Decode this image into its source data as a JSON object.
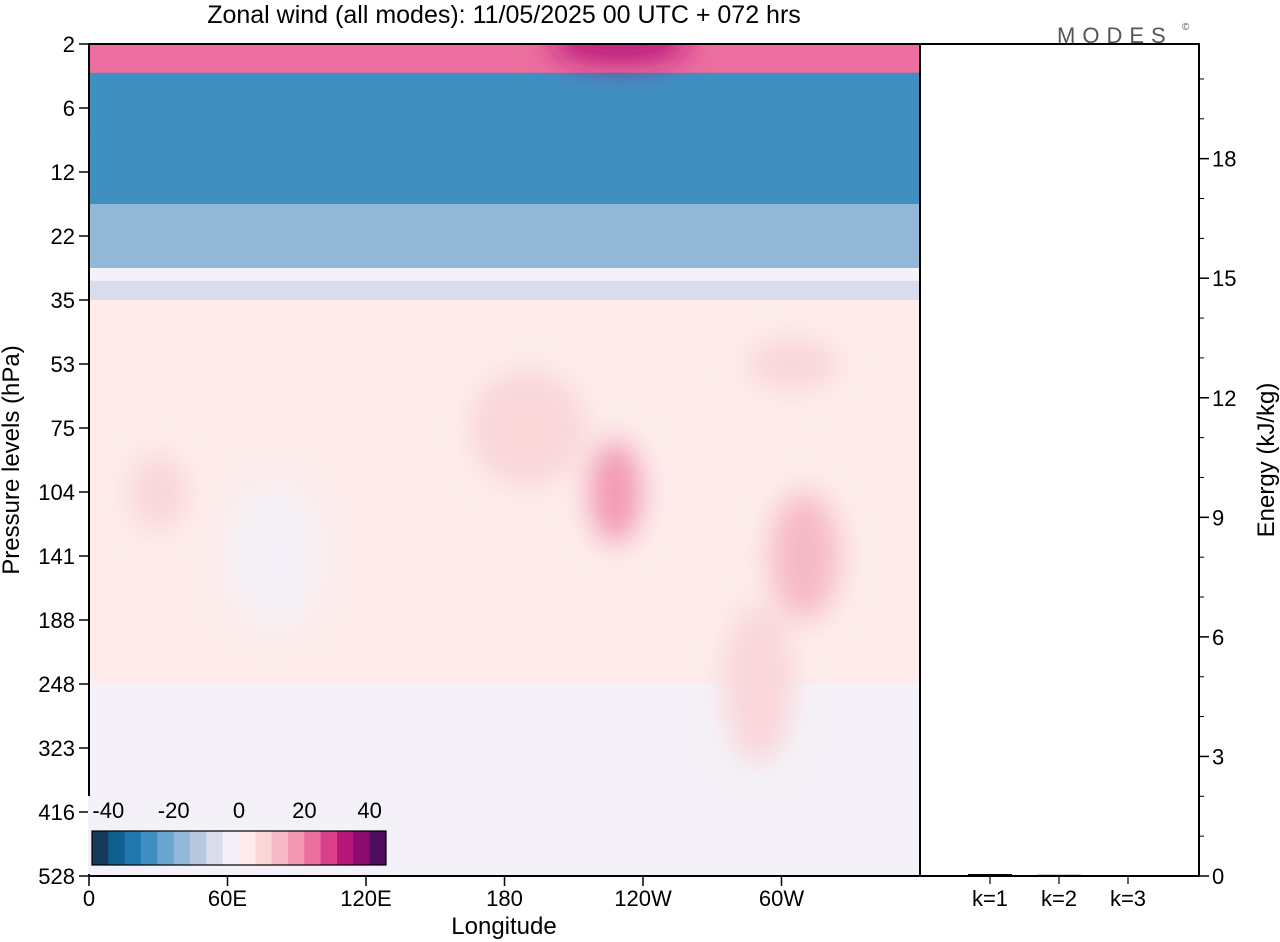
{
  "title": "Zonal wind (all modes):  11/05/2025  00 UTC  + 072 hrs",
  "logo": {
    "text": "MODES",
    "mark": "©"
  },
  "chart_data": [
    {
      "type": "heatmap",
      "title": "Zonal wind (all modes):  11/05/2025  00 UTC  + 072 hrs",
      "xlabel": "Longitude",
      "ylabel": "Pressure levels (hPa)",
      "x_ticks": [
        "0",
        "60E",
        "120E",
        "180",
        "120W",
        "60W"
      ],
      "x_tick_deg": [
        0,
        60,
        120,
        180,
        240,
        300
      ],
      "x_range_deg": [
        0,
        360
      ],
      "y_ticks": [
        "2",
        "6",
        "12",
        "22",
        "35",
        "53",
        "75",
        "104",
        "141",
        "188",
        "248",
        "323",
        "416",
        "528"
      ],
      "y_scale": "pressure-levels, increasing downward",
      "colorbar": {
        "labels": [
          "-40",
          "-20",
          "0",
          "20",
          "40"
        ],
        "label_values": [
          -40,
          -20,
          0,
          20,
          40
        ],
        "range": [
          -45,
          45
        ],
        "step": 5,
        "colors": [
          "#163a5c",
          "#0f5f8f",
          "#2178b1",
          "#3f8fc1",
          "#69a6cd",
          "#93b7d6",
          "#b8c8e0",
          "#d8dcec",
          "#f4f2f8",
          "#fdeceb",
          "#fad6d9",
          "#f6b9c6",
          "#f298b3",
          "#ec6f9f",
          "#da3f8c",
          "#b8177a",
          "#8c0b6f",
          "#4d0c5e"
        ]
      },
      "features": [
        {
          "lon": 180,
          "level": "2",
          "u": 20,
          "w": 360,
          "h": 1
        },
        {
          "lon": 230,
          "level": "2",
          "u": 30,
          "w": 60,
          "h": 0.6
        },
        {
          "lon": 180,
          "level": "6",
          "u": -28,
          "w": 360,
          "h": 1.1
        },
        {
          "lon": 180,
          "level": "12",
          "u": -27,
          "w": 360,
          "h": 1.2
        },
        {
          "lon": 180,
          "level": "22",
          "u": -20,
          "w": 360,
          "h": 1
        },
        {
          "lon": 180,
          "level": "35",
          "u": -6,
          "w": 360,
          "h": 0.6
        },
        {
          "lon": 180,
          "level": "104",
          "u": 3,
          "w": 360,
          "h": 6
        },
        {
          "lon": 190,
          "level": "75",
          "u": 7,
          "w": 50,
          "h": 1.8
        },
        {
          "lon": 228,
          "level": "104",
          "u": 16,
          "w": 22,
          "h": 1.6
        },
        {
          "lon": 310,
          "level": "141",
          "u": 14,
          "w": 30,
          "h": 2
        },
        {
          "lon": 305,
          "level": "53",
          "u": 6,
          "w": 40,
          "h": 0.8
        },
        {
          "lon": 30,
          "level": "104",
          "u": 8,
          "w": 25,
          "h": 1.2
        },
        {
          "lon": 80,
          "level": "141",
          "u": -5,
          "w": 38,
          "h": 2.2
        },
        {
          "lon": 290,
          "level": "248",
          "u": 6,
          "w": 30,
          "h": 2.5
        }
      ]
    },
    {
      "type": "bar",
      "categories": [
        "k=1",
        "k=2",
        "k=3"
      ],
      "values": [
        0.05,
        0.03,
        0.02
      ],
      "ylabel": "Energy (kJ/kg)",
      "ylim": [
        0,
        20
      ],
      "y_ticks": [
        0,
        3,
        6,
        9,
        12,
        15,
        18
      ],
      "y_minor_step": 1,
      "axis_side": "right"
    }
  ]
}
